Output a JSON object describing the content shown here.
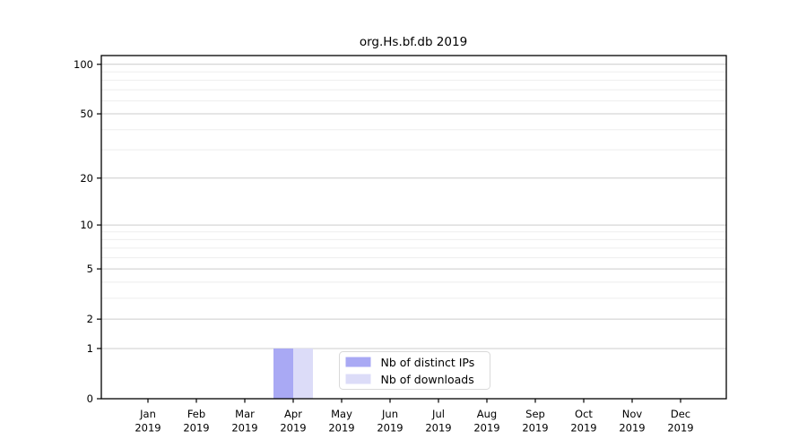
{
  "chart_data": {
    "type": "bar",
    "title": "org.Hs.bf.db 2019",
    "categories": [
      "Jan",
      "Feb",
      "Mar",
      "Apr",
      "May",
      "Jun",
      "Jul",
      "Aug",
      "Sep",
      "Oct",
      "Nov",
      "Dec"
    ],
    "x_tick_year": "2019",
    "series": [
      {
        "name": "Nb of distinct IPs",
        "color": "#a9a9f4",
        "values": [
          0,
          0,
          0,
          1,
          0,
          0,
          0,
          0,
          0,
          0,
          0,
          0
        ]
      },
      {
        "name": "Nb of downloads",
        "color": "#dcdcf8",
        "values": [
          0,
          0,
          0,
          1,
          0,
          0,
          0,
          0,
          0,
          0,
          0,
          0
        ]
      }
    ],
    "y_axis": {
      "scale": "log1p",
      "tick_labels": [
        0,
        1,
        2,
        5,
        10,
        20,
        50,
        100
      ],
      "minor_gridlines": [
        3,
        4,
        6,
        7,
        8,
        9,
        30,
        40,
        60,
        70,
        80,
        90
      ],
      "ylim": [
        0,
        113
      ]
    },
    "legend": {
      "entries": [
        "Nb of distinct IPs",
        "Nb of downloads"
      ],
      "position": "lower-center"
    },
    "grid": true,
    "colors": {
      "background": "#ffffff",
      "frame": "#000000",
      "major_grid": "#cccccc",
      "minor_grid": "#eeeeee",
      "legend_border": "#d9d9d9"
    }
  }
}
